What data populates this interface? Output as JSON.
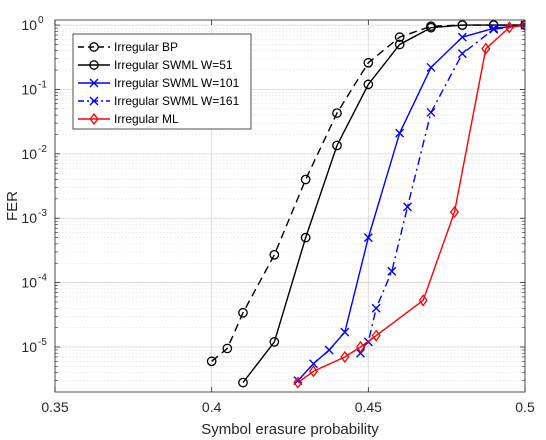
{
  "chart_data": {
    "type": "line",
    "title": "",
    "xlabel": "Symbol erasure probability",
    "ylabel": "FER",
    "xlim": [
      0.35,
      0.5
    ],
    "ylim": [
      2e-06,
      1.2
    ],
    "yscale": "log",
    "grid": true,
    "legend_placement": "top-left",
    "x_ticks": [
      {
        "value": 0.35,
        "label": "0.35"
      },
      {
        "value": 0.4,
        "label": "0.4"
      },
      {
        "value": 0.45,
        "label": "0.45"
      },
      {
        "value": 0.5,
        "label": "0.5"
      }
    ],
    "y_ticks": [
      {
        "value": 1e-05,
        "base": "10",
        "exp": "-5"
      },
      {
        "value": 0.0001,
        "base": "10",
        "exp": "-4"
      },
      {
        "value": 0.001,
        "base": "10",
        "exp": "-3"
      },
      {
        "value": 0.01,
        "base": "10",
        "exp": "-2"
      },
      {
        "value": 0.1,
        "base": "10",
        "exp": "-1"
      },
      {
        "value": 1,
        "base": "10",
        "exp": "0"
      }
    ],
    "series": [
      {
        "name": "Irregular BP",
        "color": "#000000",
        "line": "dashed",
        "marker": "circle",
        "x": [
          0.4,
          0.405,
          0.41,
          0.42,
          0.43,
          0.44,
          0.45,
          0.46,
          0.47,
          0.48,
          0.49,
          0.5
        ],
        "y": [
          6e-06,
          9.5e-06,
          3.4e-05,
          0.00027,
          0.004,
          0.043,
          0.26,
          0.65,
          0.96,
          1.0,
          1.0,
          1.0
        ]
      },
      {
        "name": "Irregular SWML W=51",
        "color": "#000000",
        "line": "solid",
        "marker": "circle",
        "x": [
          0.41,
          0.42,
          0.43,
          0.44,
          0.45,
          0.46,
          0.47,
          0.48,
          0.49,
          0.5
        ],
        "y": [
          2.8e-06,
          1.2e-05,
          0.0005,
          0.0135,
          0.12,
          0.5,
          0.91,
          1.0,
          1.0,
          1.0
        ]
      },
      {
        "name": "Irregular SWML W=101",
        "color": "#0000ff",
        "line": "solid",
        "marker": "x",
        "x": [
          0.4275,
          0.4325,
          0.4375,
          0.4425,
          0.45,
          0.46,
          0.47,
          0.48,
          0.49,
          0.5
        ],
        "y": [
          3e-06,
          5.5e-06,
          9e-06,
          1.7e-05,
          0.0005,
          0.021,
          0.22,
          0.65,
          0.89,
          1.0
        ]
      },
      {
        "name": "Irregular SWML W=161",
        "color": "#0000ff",
        "line": "dashdot",
        "marker": "x",
        "x": [
          0.4475,
          0.45,
          0.4525,
          0.4575,
          0.4625,
          0.47,
          0.48,
          0.49,
          0.5
        ],
        "y": [
          8e-06,
          1.2e-05,
          4e-05,
          0.00015,
          0.0015,
          0.044,
          0.36,
          0.86,
          1.0
        ]
      },
      {
        "name": "Irregular ML",
        "color": "#ff0000",
        "line": "solid",
        "marker": "diamond",
        "x": [
          0.4275,
          0.4325,
          0.4425,
          0.4475,
          0.4525,
          0.4675,
          0.4775,
          0.4875,
          0.495,
          0.5
        ],
        "y": [
          2.8e-06,
          4.2e-06,
          7e-06,
          1e-05,
          1.5e-05,
          5.3e-05,
          0.00125,
          0.43,
          0.92,
          1.0
        ]
      }
    ]
  }
}
